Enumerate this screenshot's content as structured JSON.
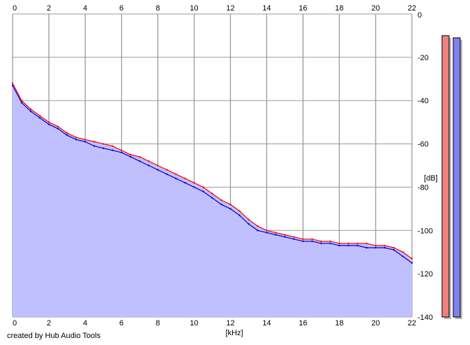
{
  "footer_text": "created by Hub Audio Tools",
  "colors": {
    "background": "#ffffff",
    "plot_background": "#ffffff",
    "grid": "#9a9a9a",
    "fill": "#c0c0ff",
    "left_channel": "#ff0000",
    "right_channel": "#0000cc",
    "left_meter": "#f08080",
    "right_meter": "#8080f0"
  },
  "chart_data": {
    "type": "line",
    "title": "",
    "xlabel": "[kHz]",
    "ylabel": "[dB]",
    "xlim": [
      0,
      22
    ],
    "ylim": [
      -140,
      0
    ],
    "grid": true,
    "x_ticks": [
      "0",
      "2",
      "4",
      "6",
      "8",
      "10",
      "12",
      "14",
      "16",
      "18",
      "20",
      "22"
    ],
    "y_ticks": [
      "0",
      "-20",
      "-40",
      "-60",
      "-80",
      "-100",
      "-120",
      "-140"
    ],
    "x": [
      0,
      0.5,
      1,
      1.5,
      2,
      2.5,
      3,
      3.5,
      4,
      4.5,
      5,
      5.5,
      6,
      6.5,
      7,
      7.5,
      8,
      8.5,
      9,
      9.5,
      10,
      10.5,
      11,
      11.5,
      12,
      12.5,
      13,
      13.5,
      14,
      14.5,
      15,
      15.5,
      16,
      16.5,
      17,
      17.5,
      18,
      18.5,
      19,
      19.5,
      20,
      20.5,
      21,
      21.5,
      22
    ],
    "series": [
      {
        "values": [
          -32,
          -40,
          -44,
          -47,
          -50,
          -52,
          -55,
          -57,
          -58,
          -59,
          -60,
          -61,
          -63,
          -65,
          -66,
          -68,
          -70,
          -72,
          -74,
          -76,
          -78,
          -80,
          -83,
          -86,
          -88,
          -91,
          -95,
          -98,
          -100,
          -101,
          -102,
          -103,
          -104,
          -104,
          -105,
          -105,
          -106,
          -106,
          -106,
          -106,
          -107,
          -107,
          -108,
          -110,
          -113
        ]
      },
      {
        "values": [
          -33,
          -41,
          -45,
          -48,
          -51,
          -53,
          -56,
          -58,
          -59,
          -61,
          -62,
          -63,
          -64,
          -66,
          -68,
          -70,
          -72,
          -74,
          -76,
          -78,
          -80,
          -82,
          -85,
          -88,
          -90,
          -93,
          -97,
          -100,
          -101,
          -102,
          -103,
          -104,
          -105,
          -105,
          -106,
          -106,
          -107,
          -107,
          -107,
          -108,
          -108,
          -108,
          -109,
          -112,
          -115
        ]
      }
    ],
    "level_meters": [
      -10,
      -11
    ]
  }
}
